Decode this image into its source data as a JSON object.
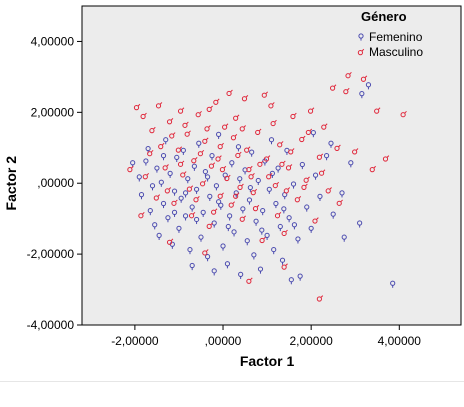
{
  "chart_data": {
    "type": "scatter",
    "title": "",
    "xlabel": "Factor 1",
    "ylabel": "Factor 2",
    "xlim": [
      -3.2,
      5.4
    ],
    "ylim": [
      -4.0,
      5.0
    ],
    "x_ticks": [
      {
        "value": -2,
        "label": "-2,00000"
      },
      {
        "value": 0,
        "label": ",00000"
      },
      {
        "value": 2,
        "label": "2,00000"
      },
      {
        "value": 4,
        "label": "4,00000"
      }
    ],
    "y_ticks": [
      {
        "value": -4,
        "label": "-4,00000"
      },
      {
        "value": -2,
        "label": "-2,00000"
      },
      {
        "value": 0,
        "label": ",00000"
      },
      {
        "value": 2,
        "label": "2,00000"
      },
      {
        "value": 4,
        "label": "4,00000"
      }
    ],
    "grid": false,
    "background": "#ececec",
    "legend": {
      "title": "Género",
      "placement": "top-right",
      "entries": [
        "Femenino",
        "Masculino"
      ]
    },
    "series": [
      {
        "name": "Femenino",
        "color": "#4b4baf",
        "marker": "female-symbol",
        "points": [
          [
            -2.05,
            0.55
          ],
          [
            -1.9,
            0.15
          ],
          [
            -1.85,
            -0.35
          ],
          [
            -1.7,
            0.95
          ],
          [
            -1.65,
            -0.8
          ],
          [
            -1.55,
            -1.2
          ],
          [
            -1.5,
            0.4
          ],
          [
            -1.45,
            -1.5
          ],
          [
            -1.4,
            0.0
          ],
          [
            -1.35,
            -0.6
          ],
          [
            -1.3,
            1.2
          ],
          [
            -1.25,
            -1.0
          ],
          [
            -1.2,
            0.25
          ],
          [
            -1.15,
            -1.75
          ],
          [
            -1.1,
            -0.25
          ],
          [
            -1.05,
            0.7
          ],
          [
            -1.0,
            -1.3
          ],
          [
            -0.95,
            -0.45
          ],
          [
            -0.9,
            0.9
          ],
          [
            -0.85,
            -0.95
          ],
          [
            -0.8,
            0.1
          ],
          [
            -0.75,
            -1.9
          ],
          [
            -0.7,
            -0.7
          ],
          [
            -0.65,
            0.45
          ],
          [
            -0.6,
            -0.2
          ],
          [
            -0.55,
            1.1
          ],
          [
            -0.5,
            -1.55
          ],
          [
            -0.45,
            -0.85
          ],
          [
            -0.4,
            0.3
          ],
          [
            -0.35,
            -2.1
          ],
          [
            -0.3,
            -0.4
          ],
          [
            -0.25,
            0.75
          ],
          [
            -0.2,
            -1.15
          ],
          [
            -0.15,
            -0.1
          ],
          [
            -0.1,
            1.35
          ],
          [
            -0.05,
            -0.65
          ],
          [
            0.0,
            -1.8
          ],
          [
            0.05,
            0.2
          ],
          [
            0.1,
            -2.3
          ],
          [
            0.15,
            -0.95
          ],
          [
            0.2,
            0.55
          ],
          [
            0.25,
            -1.4
          ],
          [
            0.3,
            -0.3
          ],
          [
            0.35,
            1.0
          ],
          [
            0.4,
            -2.6
          ],
          [
            0.45,
            -0.75
          ],
          [
            0.5,
            0.35
          ],
          [
            0.55,
            -1.65
          ],
          [
            0.6,
            -0.5
          ],
          [
            0.65,
            0.85
          ],
          [
            0.7,
            -2.05
          ],
          [
            0.75,
            -1.1
          ],
          [
            0.8,
            0.05
          ],
          [
            0.85,
            -2.45
          ],
          [
            0.9,
            -0.8
          ],
          [
            0.95,
            0.6
          ],
          [
            1.0,
            -1.5
          ],
          [
            1.05,
            -0.2
          ],
          [
            1.1,
            1.2
          ],
          [
            1.15,
            -1.9
          ],
          [
            1.2,
            -0.6
          ],
          [
            1.25,
            0.4
          ],
          [
            1.3,
            -1.25
          ],
          [
            1.35,
            -2.2
          ],
          [
            1.4,
            -0.35
          ],
          [
            1.45,
            0.9
          ],
          [
            1.5,
            -1.0
          ],
          [
            1.6,
            -0.05
          ],
          [
            1.7,
            -1.6
          ],
          [
            1.8,
            0.5
          ],
          [
            1.9,
            -0.7
          ],
          [
            2.0,
            -1.3
          ],
          [
            2.1,
            0.2
          ],
          [
            2.2,
            -0.4
          ],
          [
            2.35,
            0.75
          ],
          [
            2.5,
            -0.9
          ],
          [
            2.7,
            -0.3
          ],
          [
            2.9,
            0.55
          ],
          [
            3.1,
            -1.15
          ],
          [
            3.3,
            2.75
          ],
          [
            3.15,
            2.5
          ],
          [
            2.75,
            -1.55
          ],
          [
            1.75,
            -2.65
          ],
          [
            1.55,
            -2.75
          ],
          [
            2.05,
            1.4
          ],
          [
            2.45,
            1.1
          ],
          [
            3.85,
            -2.85
          ],
          [
            -1.75,
            0.6
          ],
          [
            -1.6,
            -0.1
          ],
          [
            -1.35,
            0.75
          ],
          [
            -1.1,
            -0.85
          ],
          [
            -0.85,
            -0.3
          ],
          [
            -0.6,
            -1.05
          ],
          [
            -0.35,
            0.15
          ],
          [
            -0.1,
            -0.55
          ],
          [
            0.12,
            -1.25
          ],
          [
            0.38,
            0.1
          ],
          [
            0.62,
            -0.15
          ],
          [
            0.88,
            -1.35
          ],
          [
            1.12,
            0.25
          ],
          [
            1.38,
            -0.75
          ],
          [
            1.62,
            -1.2
          ],
          [
            -0.7,
            -2.35
          ],
          [
            -0.2,
            -2.5
          ]
        ]
      },
      {
        "name": "Masculino",
        "color": "#e0263a",
        "marker": "male-symbol",
        "points": [
          [
            -2.1,
            0.4
          ],
          [
            -1.95,
            2.15
          ],
          [
            -1.8,
            1.9
          ],
          [
            -1.75,
            0.2
          ],
          [
            -1.6,
            1.5
          ],
          [
            -1.5,
            -0.4
          ],
          [
            -1.4,
            1.05
          ],
          [
            -1.3,
            0.45
          ],
          [
            -1.2,
            1.75
          ],
          [
            -1.1,
            -0.55
          ],
          [
            -1.0,
            0.95
          ],
          [
            -0.95,
            2.05
          ],
          [
            -0.9,
            0.25
          ],
          [
            -0.8,
            1.4
          ],
          [
            -0.7,
            -0.9
          ],
          [
            -0.65,
            0.65
          ],
          [
            -0.55,
            1.95
          ],
          [
            -0.45,
            0.0
          ],
          [
            -0.4,
            1.2
          ],
          [
            -0.3,
            -1.2
          ],
          [
            -0.25,
            0.5
          ],
          [
            -0.15,
            2.3
          ],
          [
            -0.05,
            -0.35
          ],
          [
            0.05,
            1.6
          ],
          [
            0.1,
            0.15
          ],
          [
            0.2,
            -0.6
          ],
          [
            0.3,
            1.85
          ],
          [
            0.35,
            0.8
          ],
          [
            0.45,
            -1.0
          ],
          [
            0.5,
            2.4
          ],
          [
            0.6,
            0.4
          ],
          [
            0.7,
            -0.25
          ],
          [
            0.8,
            1.45
          ],
          [
            0.9,
            -1.6
          ],
          [
            1.0,
            0.7
          ],
          [
            1.1,
            2.2
          ],
          [
            1.2,
            -0.05
          ],
          [
            1.3,
            1.1
          ],
          [
            1.4,
            -1.4
          ],
          [
            1.5,
            0.45
          ],
          [
            1.6,
            1.9
          ],
          [
            1.7,
            -0.45
          ],
          [
            1.8,
            1.25
          ],
          [
            1.9,
            0.1
          ],
          [
            2.0,
            2.05
          ],
          [
            2.1,
            -1.05
          ],
          [
            2.2,
            0.75
          ],
          [
            2.3,
            1.6
          ],
          [
            2.4,
            -0.2
          ],
          [
            2.6,
            1.0
          ],
          [
            2.8,
            2.6
          ],
          [
            2.85,
            3.05
          ],
          [
            3.2,
            2.95
          ],
          [
            3.5,
            2.05
          ],
          [
            4.1,
            1.95
          ],
          [
            3.7,
            0.7
          ],
          [
            2.2,
            -3.25
          ],
          [
            1.4,
            -2.35
          ],
          [
            0.6,
            -2.75
          ],
          [
            -0.4,
            -1.95
          ],
          [
            -1.2,
            -1.65
          ],
          [
            -1.85,
            -0.9
          ],
          [
            0.15,
            2.55
          ],
          [
            0.95,
            2.5
          ],
          [
            2.5,
            2.7
          ],
          [
            -1.45,
            2.2
          ],
          [
            -0.75,
            -0.15
          ],
          [
            -0.5,
            0.85
          ],
          [
            -0.2,
            -0.8
          ],
          [
            0.0,
            0.4
          ],
          [
            0.25,
            1.3
          ],
          [
            0.4,
            -0.1
          ],
          [
            0.55,
            0.95
          ],
          [
            0.75,
            -0.7
          ],
          [
            1.05,
            0.2
          ],
          [
            1.25,
            -0.9
          ],
          [
            1.55,
            0.9
          ],
          [
            1.85,
            -0.1
          ],
          [
            2.25,
            0.3
          ],
          [
            2.65,
            -0.55
          ],
          [
            -1.65,
            0.85
          ],
          [
            -1.25,
            -0.2
          ],
          [
            -0.95,
            0.55
          ],
          [
            -0.6,
            -0.45
          ],
          [
            -0.35,
            1.55
          ],
          [
            -0.1,
            0.7
          ],
          [
            0.3,
            -0.35
          ],
          [
            0.65,
            0.2
          ],
          [
            0.85,
            0.55
          ],
          [
            1.15,
            1.7
          ],
          [
            1.45,
            -0.2
          ],
          [
            -0.85,
            1.65
          ],
          [
            -0.05,
            1.05
          ],
          [
            0.45,
            1.55
          ],
          [
            1.35,
            0.55
          ],
          [
            1.95,
            1.45
          ],
          [
            3.0,
            0.9
          ],
          [
            3.4,
            0.4
          ],
          [
            -1.15,
            1.35
          ],
          [
            -0.3,
            2.1
          ]
        ]
      }
    ]
  }
}
